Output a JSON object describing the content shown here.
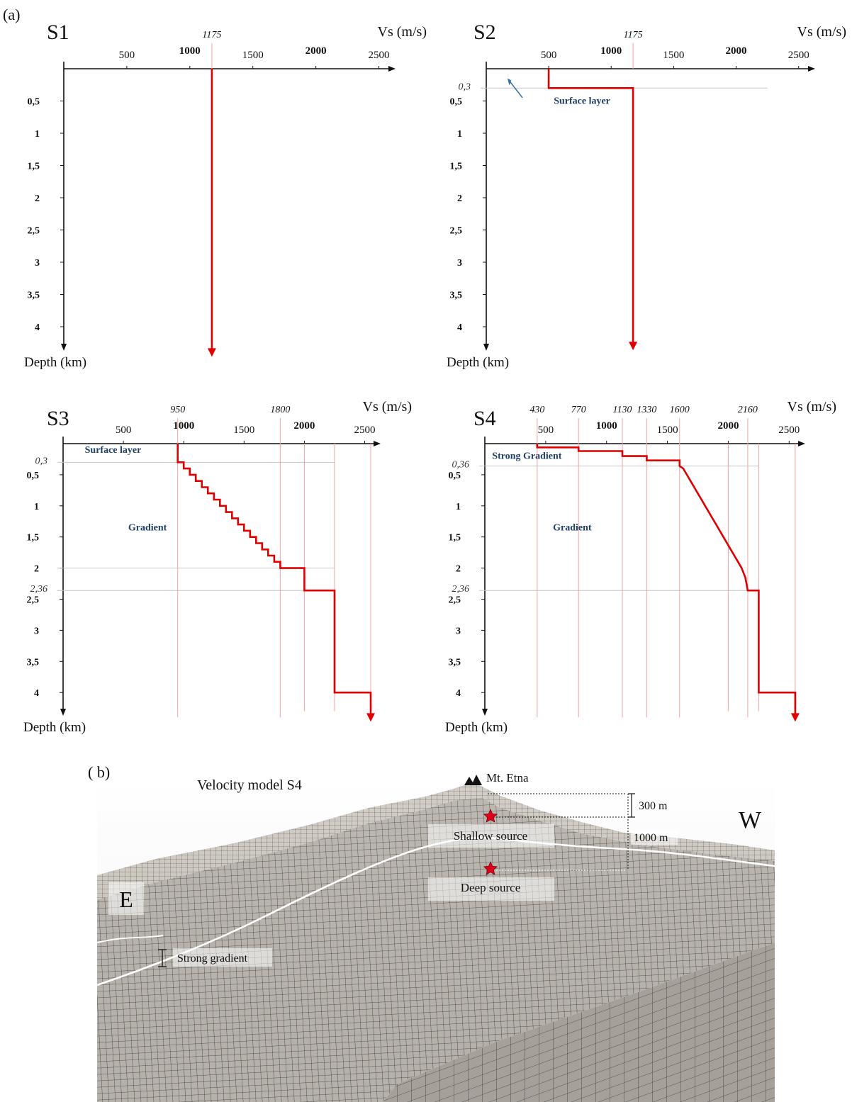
{
  "figure": {
    "panel_a_label": "(a)",
    "panel_b_label": "( b)"
  },
  "chart_data": [
    {
      "type": "line",
      "title": "S1",
      "xlabel": "Vs (m/s)",
      "ylabel": "Depth (km)",
      "xlim": [
        0,
        2600
      ],
      "ylim": [
        4.4,
        0
      ],
      "x_ticks": [
        500,
        1000,
        1500,
        2000,
        2500
      ],
      "y_ticks": [
        "0,5",
        "1",
        "1,5",
        "2",
        "2,5",
        "3",
        "3,5",
        "4"
      ],
      "top_labels": [
        1175
      ],
      "depth_labels": [],
      "series": [
        {
          "values": [
            [
              1175,
              0
            ],
            [
              1175,
              4.4
            ]
          ]
        }
      ],
      "annotations": [],
      "guides": []
    },
    {
      "type": "line",
      "title": "S2",
      "xlabel": "Vs (m/s)",
      "ylabel": "Depth (km)",
      "xlim": [
        0,
        2600
      ],
      "ylim": [
        4.4,
        0
      ],
      "x_ticks": [
        500,
        1000,
        1500,
        2000,
        2500
      ],
      "y_ticks": [
        "0,5",
        "1",
        "1,5",
        "2",
        "2,5",
        "3",
        "3,5",
        "4"
      ],
      "top_labels": [
        1175
      ],
      "depth_labels": [
        "0,3"
      ],
      "series": [
        {
          "values": [
            [
              500,
              0
            ],
            [
              500,
              0.3
            ],
            [
              1175,
              0.3
            ],
            [
              1175,
              4.3
            ]
          ]
        }
      ],
      "annotations": [
        "Surface layer"
      ],
      "guides": [
        0.3
      ]
    },
    {
      "type": "line",
      "title": "S3",
      "xlabel": "Vs (m/s)",
      "ylabel": "Depth (km)",
      "xlim": [
        0,
        2600
      ],
      "ylim": [
        4.4,
        0
      ],
      "x_ticks": [
        500,
        1000,
        1500,
        2000,
        2500
      ],
      "y_ticks": [
        "0,5",
        "1",
        "1,5",
        "2",
        "2,5",
        "3",
        "3,5",
        "4"
      ],
      "top_labels": [
        950,
        1800
      ],
      "depth_labels": [
        "0,3",
        "2,36"
      ],
      "series": [
        {
          "values": [
            [
              950,
              0
            ],
            [
              950,
              0.3
            ],
            [
              1000,
              0.3
            ],
            [
              1000,
              0.4
            ],
            [
              1050,
              0.4
            ],
            [
              1050,
              0.5
            ],
            [
              1100,
              0.5
            ],
            [
              1100,
              0.6
            ],
            [
              1150,
              0.6
            ],
            [
              1150,
              0.7
            ],
            [
              1200,
              0.7
            ],
            [
              1200,
              0.8
            ],
            [
              1250,
              0.8
            ],
            [
              1250,
              0.9
            ],
            [
              1300,
              0.9
            ],
            [
              1300,
              1.0
            ],
            [
              1350,
              1.0
            ],
            [
              1350,
              1.1
            ],
            [
              1400,
              1.1
            ],
            [
              1400,
              1.2
            ],
            [
              1450,
              1.2
            ],
            [
              1450,
              1.3
            ],
            [
              1500,
              1.3
            ],
            [
              1500,
              1.4
            ],
            [
              1550,
              1.4
            ],
            [
              1550,
              1.5
            ],
            [
              1600,
              1.5
            ],
            [
              1600,
              1.6
            ],
            [
              1650,
              1.6
            ],
            [
              1650,
              1.7
            ],
            [
              1700,
              1.7
            ],
            [
              1700,
              1.8
            ],
            [
              1750,
              1.8
            ],
            [
              1750,
              1.9
            ],
            [
              1800,
              1.9
            ],
            [
              1800,
              2.0
            ],
            [
              2000,
              2.0
            ],
            [
              2000,
              2.36
            ],
            [
              2250,
              2.36
            ],
            [
              2250,
              4.0
            ],
            [
              2550,
              4.0
            ],
            [
              2550,
              4.4
            ]
          ]
        }
      ],
      "annotations": [
        "Surface layer",
        "Gradient"
      ],
      "guides": [
        0.3,
        2.0,
        2.36
      ]
    },
    {
      "type": "line",
      "title": "S4",
      "xlabel": "Vs (m/s)",
      "ylabel": "Depth (km)",
      "xlim": [
        0,
        2600
      ],
      "ylim": [
        4.4,
        0
      ],
      "x_ticks": [
        500,
        1000,
        1500,
        2000,
        2500
      ],
      "y_ticks": [
        "0,5",
        "1",
        "1,5",
        "2",
        "2,5",
        "3",
        "3,5",
        "4"
      ],
      "top_labels": [
        430,
        770,
        1130,
        1330,
        1600,
        2160
      ],
      "depth_labels": [
        "0,36",
        "2,36"
      ],
      "series": [
        {
          "values": [
            [
              430,
              0
            ],
            [
              430,
              0.06
            ],
            [
              770,
              0.06
            ],
            [
              770,
              0.12
            ],
            [
              1130,
              0.12
            ],
            [
              1130,
              0.2
            ],
            [
              1330,
              0.2
            ],
            [
              1330,
              0.27
            ],
            [
              1600,
              0.27
            ],
            [
              1600,
              0.36
            ],
            [
              1630,
              0.4
            ],
            [
              1660,
              0.5
            ],
            [
              1690,
              0.6
            ],
            [
              1720,
              0.7
            ],
            [
              1750,
              0.8
            ],
            [
              1780,
              0.9
            ],
            [
              1810,
              1.0
            ],
            [
              1840,
              1.1
            ],
            [
              1870,
              1.2
            ],
            [
              1900,
              1.3
            ],
            [
              1930,
              1.4
            ],
            [
              1960,
              1.5
            ],
            [
              1990,
              1.6
            ],
            [
              2020,
              1.7
            ],
            [
              2050,
              1.8
            ],
            [
              2080,
              1.9
            ],
            [
              2110,
              2.0
            ],
            [
              2140,
              2.15
            ],
            [
              2160,
              2.36
            ],
            [
              2250,
              2.36
            ],
            [
              2250,
              4.0
            ],
            [
              2550,
              4.0
            ],
            [
              2550,
              4.4
            ]
          ]
        }
      ],
      "annotations": [
        "Strong Gradient",
        "Gradient"
      ],
      "guides": [
        0.36,
        2.36
      ]
    }
  ],
  "model": {
    "title": "Velocity model S4",
    "peak": "Mt. Etna",
    "east": "E",
    "west": "W",
    "shallow": "Shallow source",
    "deep": "Deep source",
    "strong": "Strong gradient",
    "d300": "300 m",
    "d1000": "1000 m"
  }
}
